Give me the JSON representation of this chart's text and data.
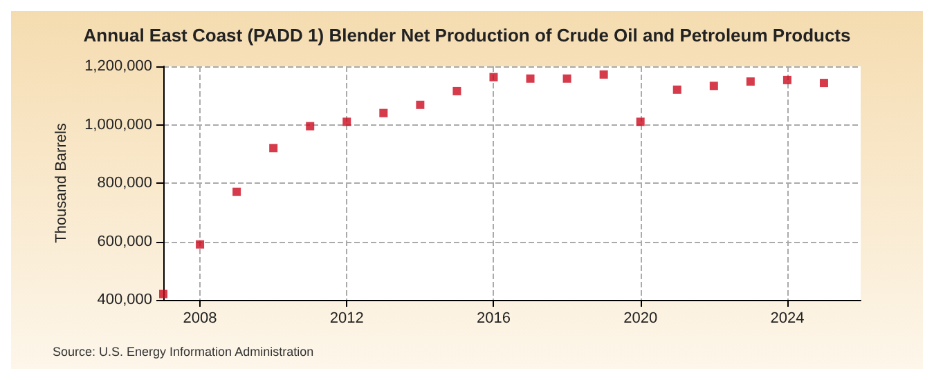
{
  "chart_data": {
    "type": "scatter",
    "title": "Annual East Coast (PADD 1) Blender Net Production of Crude Oil and Petroleum Products",
    "ylabel": "Thousand Barrels",
    "annotations": [
      "Source: U.S. Energy Information Administration"
    ],
    "x": [
      2007,
      2008,
      2009,
      2010,
      2011,
      2012,
      2013,
      2014,
      2015,
      2016,
      2017,
      2018,
      2019,
      2020,
      2021,
      2022,
      2023,
      2024,
      2025
    ],
    "series": [
      {
        "color": "#cc0a1e",
        "values": [
          420000,
          590000,
          770000,
          920000,
          995000,
          1010000,
          1040000,
          1068000,
          1115000,
          1163000,
          1158000,
          1158000,
          1172000,
          1010000,
          1120000,
          1133000,
          1148000,
          1153000,
          1143000
        ]
      }
    ],
    "xlim": [
      2007,
      2026
    ],
    "xticks": [
      2008,
      2012,
      2016,
      2020,
      2024
    ],
    "ylim": [
      400000,
      1200000
    ],
    "yticks": [
      {
        "value": 400000,
        "label": "400,000"
      },
      {
        "value": 600000,
        "label": "600,000"
      },
      {
        "value": 800000,
        "label": "800,000"
      },
      {
        "value": 1000000,
        "label": "1,000,000"
      },
      {
        "value": 1200000,
        "label": "1,200,000"
      }
    ],
    "grid": true,
    "marker": "square"
  }
}
